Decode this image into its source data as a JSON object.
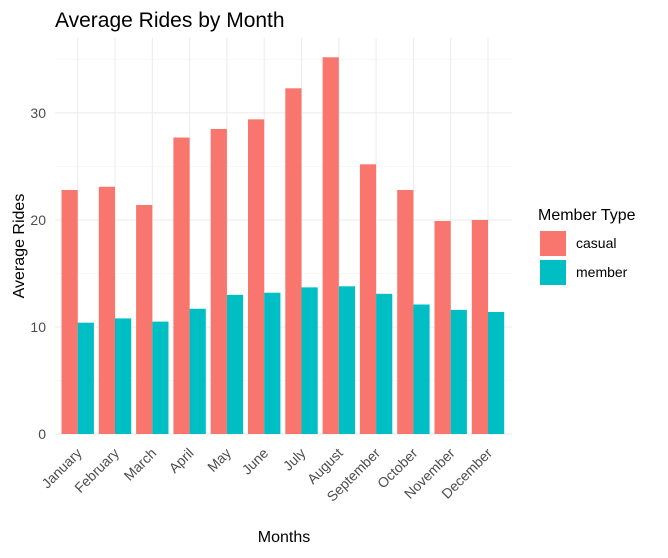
{
  "chart_data": {
    "type": "bar",
    "title": "Average Rides by Month",
    "xlabel": "Months",
    "ylabel": "Average Rides",
    "categories": [
      "January",
      "February",
      "March",
      "April",
      "May",
      "June",
      "July",
      "August",
      "September",
      "October",
      "November",
      "December"
    ],
    "series": [
      {
        "name": "casual",
        "color": "#f8766d",
        "values": [
          22.8,
          23.1,
          21.4,
          27.7,
          28.5,
          29.4,
          32.3,
          35.2,
          25.2,
          22.8,
          19.9,
          20.0
        ]
      },
      {
        "name": "member",
        "color": "#00bfc4",
        "values": [
          10.4,
          10.8,
          10.5,
          11.7,
          13.0,
          13.2,
          13.7,
          13.8,
          13.1,
          12.1,
          11.6,
          11.4
        ]
      }
    ],
    "ylim": [
      0,
      37
    ],
    "yticks": [
      0,
      10,
      20,
      30
    ],
    "grid": true,
    "legend": {
      "title": "Member Type",
      "position": "right"
    }
  }
}
